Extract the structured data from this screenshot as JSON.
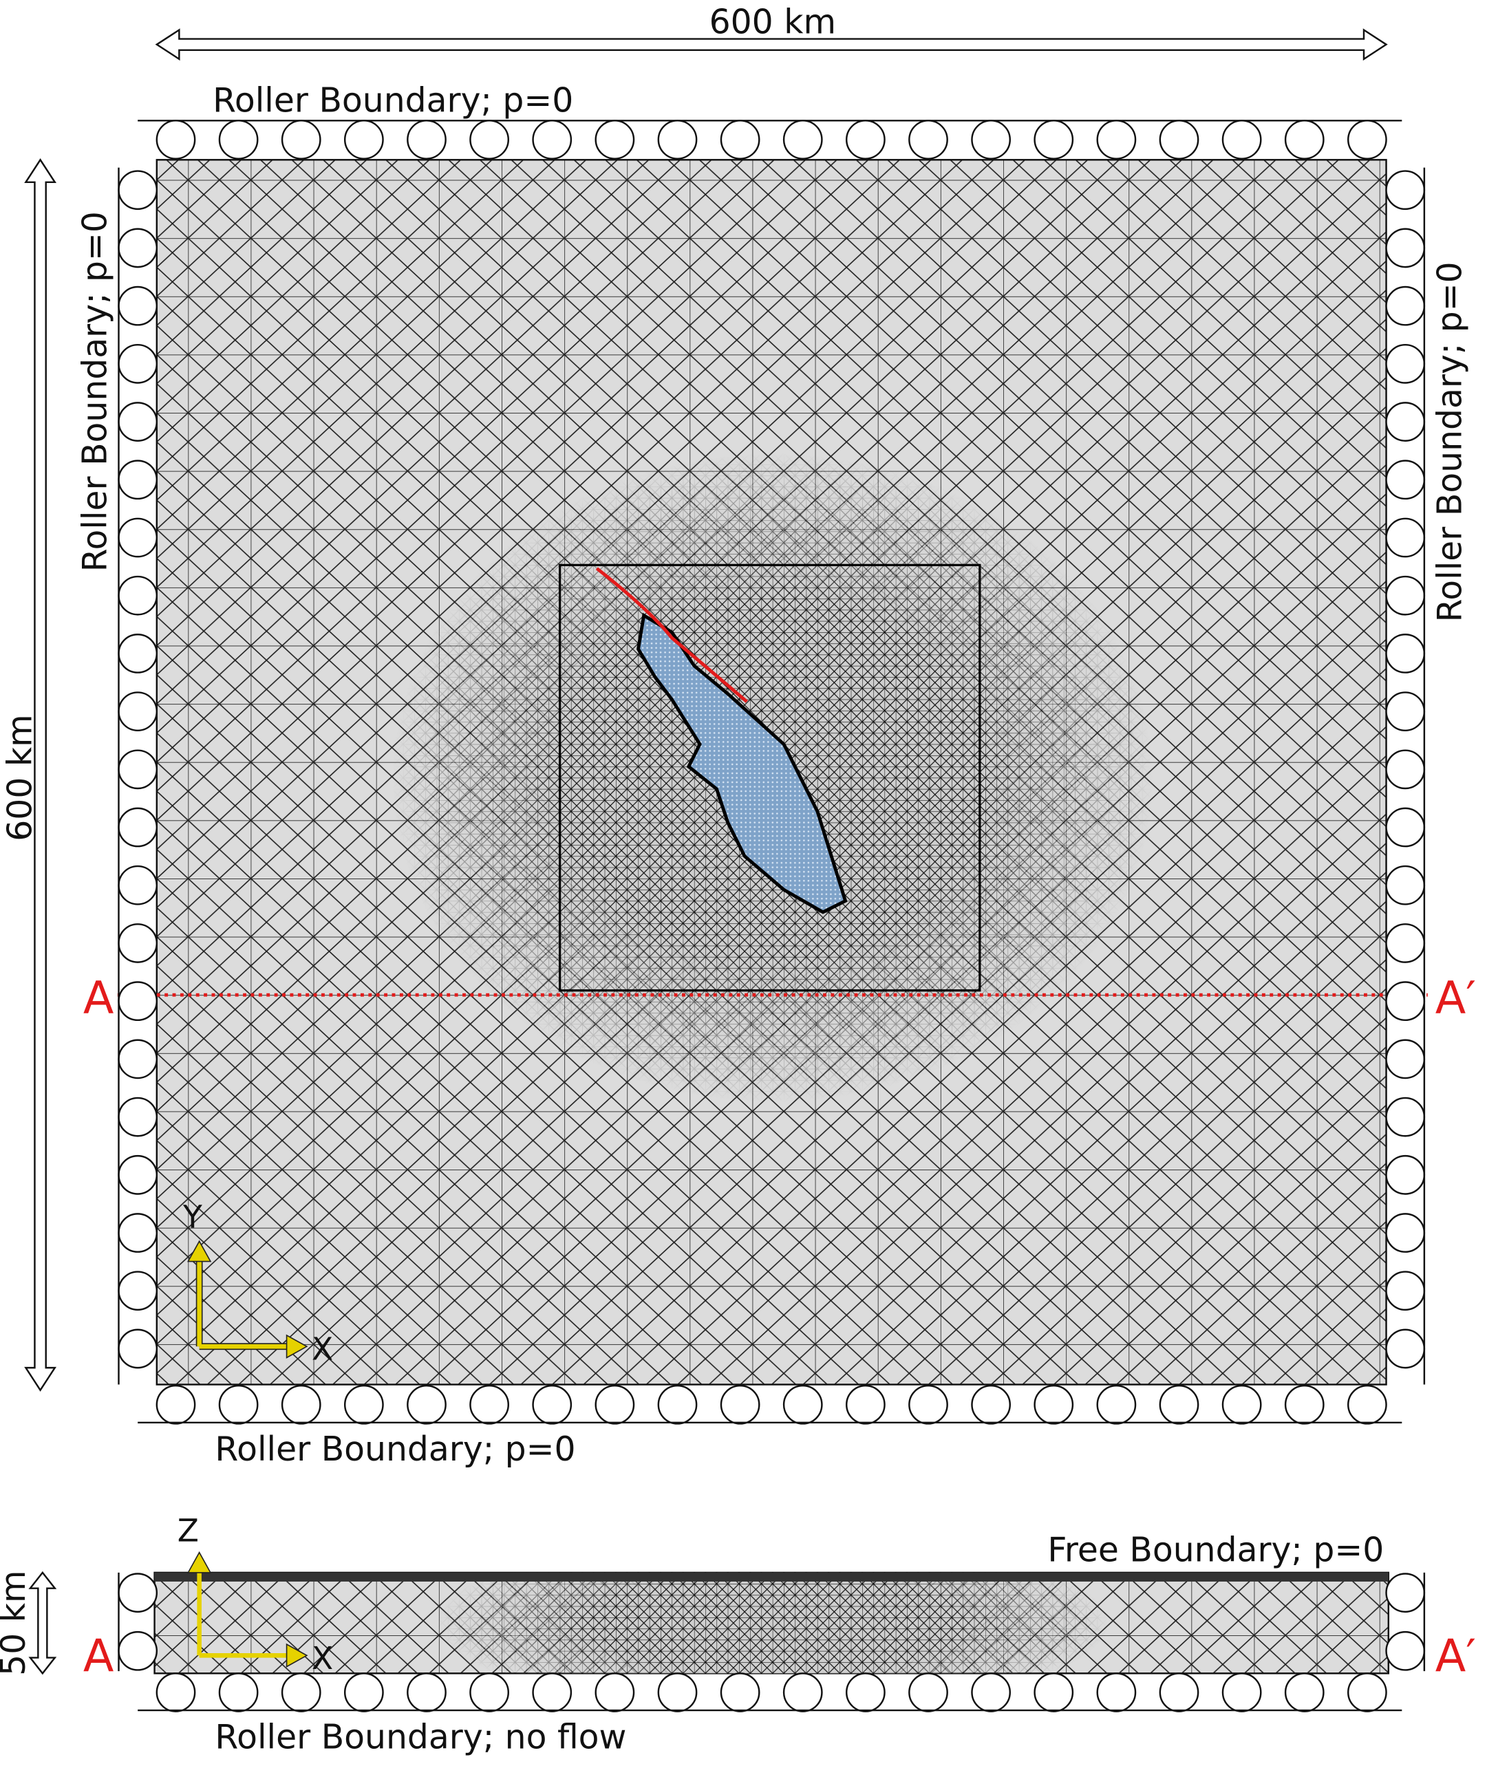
{
  "top_dimension": "600 km",
  "top_boundary": "Roller Boundary; p=0",
  "left_boundary": "Roller Boundary; p=0",
  "right_boundary": "Roller Boundary; p=0",
  "bottom_boundary": "Roller Boundary; p=0",
  "left_dimension": "600 km",
  "plan_section_markers": {
    "left": "A",
    "right": "A′"
  },
  "plan_axes": {
    "y": "Y",
    "x": "X"
  },
  "section": {
    "free_boundary": "Free Boundary; p=0",
    "depth_dimension": "50 km",
    "bottom_boundary": "Roller Boundary; no flow",
    "axes": {
      "z": "Z",
      "x": "X"
    },
    "markers": {
      "left": "A",
      "right": "A′"
    }
  }
}
